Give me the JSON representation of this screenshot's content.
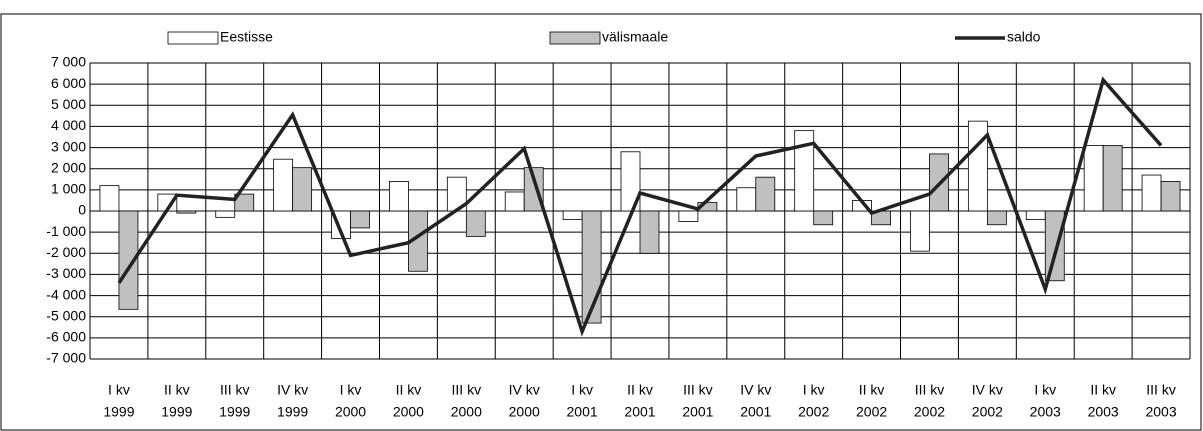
{
  "chart_data": {
    "type": "bar_line",
    "categories": [
      [
        "I kv",
        "1999"
      ],
      [
        "II kv",
        "1999"
      ],
      [
        "III kv",
        "1999"
      ],
      [
        "IV kv",
        "1999"
      ],
      [
        "I kv",
        "2000"
      ],
      [
        "II kv",
        "2000"
      ],
      [
        "III kv",
        "2000"
      ],
      [
        "IV kv",
        "2000"
      ],
      [
        "I kv",
        "2001"
      ],
      [
        "II kv",
        "2001"
      ],
      [
        "III kv",
        "2001"
      ],
      [
        "IV kv",
        "2001"
      ],
      [
        "I kv",
        "2002"
      ],
      [
        "II kv",
        "2002"
      ],
      [
        "III kv",
        "2002"
      ],
      [
        "IV kv",
        "2002"
      ],
      [
        "I kv",
        "2003"
      ],
      [
        "II kv",
        "2003"
      ],
      [
        "III kv",
        "2003"
      ]
    ],
    "series": [
      {
        "name": "Eestisse",
        "type": "bar",
        "color": "#ffffff",
        "values": [
          1200,
          800,
          -300,
          2450,
          -1300,
          1400,
          1600,
          900,
          -400,
          2800,
          -500,
          1100,
          3800,
          500,
          -1900,
          4250,
          -400,
          3100,
          1700
        ]
      },
      {
        "name": "välismaale",
        "type": "bar",
        "color": "#c0c0c0",
        "values": [
          -4650,
          -100,
          800,
          2050,
          -800,
          -2850,
          -1200,
          2050,
          -5300,
          -2000,
          400,
          1600,
          -650,
          -650,
          2700,
          -650,
          -3300,
          3100,
          1400
        ]
      },
      {
        "name": "saldo",
        "type": "line",
        "color": "#222222",
        "values": [
          -3400,
          750,
          550,
          4550,
          -2100,
          -1500,
          350,
          2950,
          -5700,
          850,
          100,
          2600,
          3200,
          -100,
          800,
          3600,
          -3700,
          6200,
          3100
        ]
      }
    ],
    "ylim": [
      -7000,
      7000
    ],
    "yticks": [
      {
        "value": -7000,
        "label": "-7 000"
      },
      {
        "value": -6000,
        "label": "-6 000"
      },
      {
        "value": -5000,
        "label": "-5 000"
      },
      {
        "value": -4000,
        "label": "-4 000"
      },
      {
        "value": -3000,
        "label": "-3 000"
      },
      {
        "value": -2000,
        "label": "-2 000"
      },
      {
        "value": -1000,
        "label": "-1 000"
      },
      0,
      {
        "value": 1000,
        "label": "1 000"
      },
      {
        "value": 2000,
        "label": "2 000"
      },
      {
        "value": 3000,
        "label": "3 000"
      },
      {
        "value": 4000,
        "label": "4 000"
      },
      {
        "value": 5000,
        "label": "5 000"
      },
      {
        "value": 6000,
        "label": "6 000"
      },
      {
        "value": 7000,
        "label": "7 000"
      }
    ],
    "grid": true,
    "legend": "top"
  }
}
